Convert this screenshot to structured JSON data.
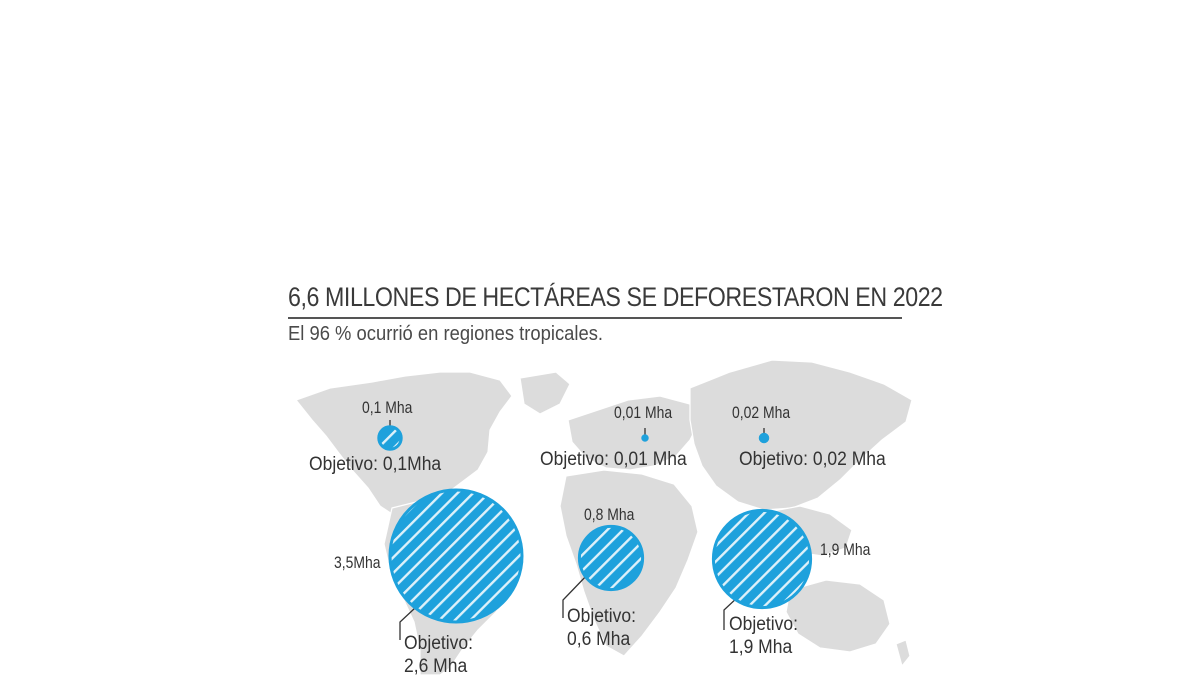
{
  "title": "6,6 MILLONES DE HECTÁREAS SE DEFORESTARON EN 2022",
  "subtitle": "El 96 % ocurrió en regiones tropicales.",
  "colors": {
    "bubble": "#1ea1dc",
    "hatch": "#ffffff",
    "land": "#dcdcdc",
    "text": "#333333"
  },
  "regions": [
    {
      "id": "north-america",
      "value": "0,1 Mha",
      "value_mha": 0.1,
      "target_label": "Objetivo:",
      "target_value": "0,1Mha"
    },
    {
      "id": "latin-america",
      "value": "3,5Mha",
      "value_mha": 3.5,
      "target_label": "Objetivo:",
      "target_value": "2,6 Mha"
    },
    {
      "id": "europe",
      "value": "0,01 Mha",
      "value_mha": 0.01,
      "target_label": "Objetivo:",
      "target_value": "0,01 Mha"
    },
    {
      "id": "russia",
      "value": "0,02 Mha",
      "value_mha": 0.02,
      "target_label": "Objetivo:",
      "target_value": "0,02 Mha"
    },
    {
      "id": "africa",
      "value": "0,8 Mha",
      "value_mha": 0.8,
      "target_label": "Objetivo:",
      "target_value": "0,6 Mha"
    },
    {
      "id": "asia-pacific",
      "value": "1,9 Mha",
      "value_mha": 1.9,
      "target_label": "Objetivo:",
      "target_value": "1,9 Mha"
    }
  ]
}
